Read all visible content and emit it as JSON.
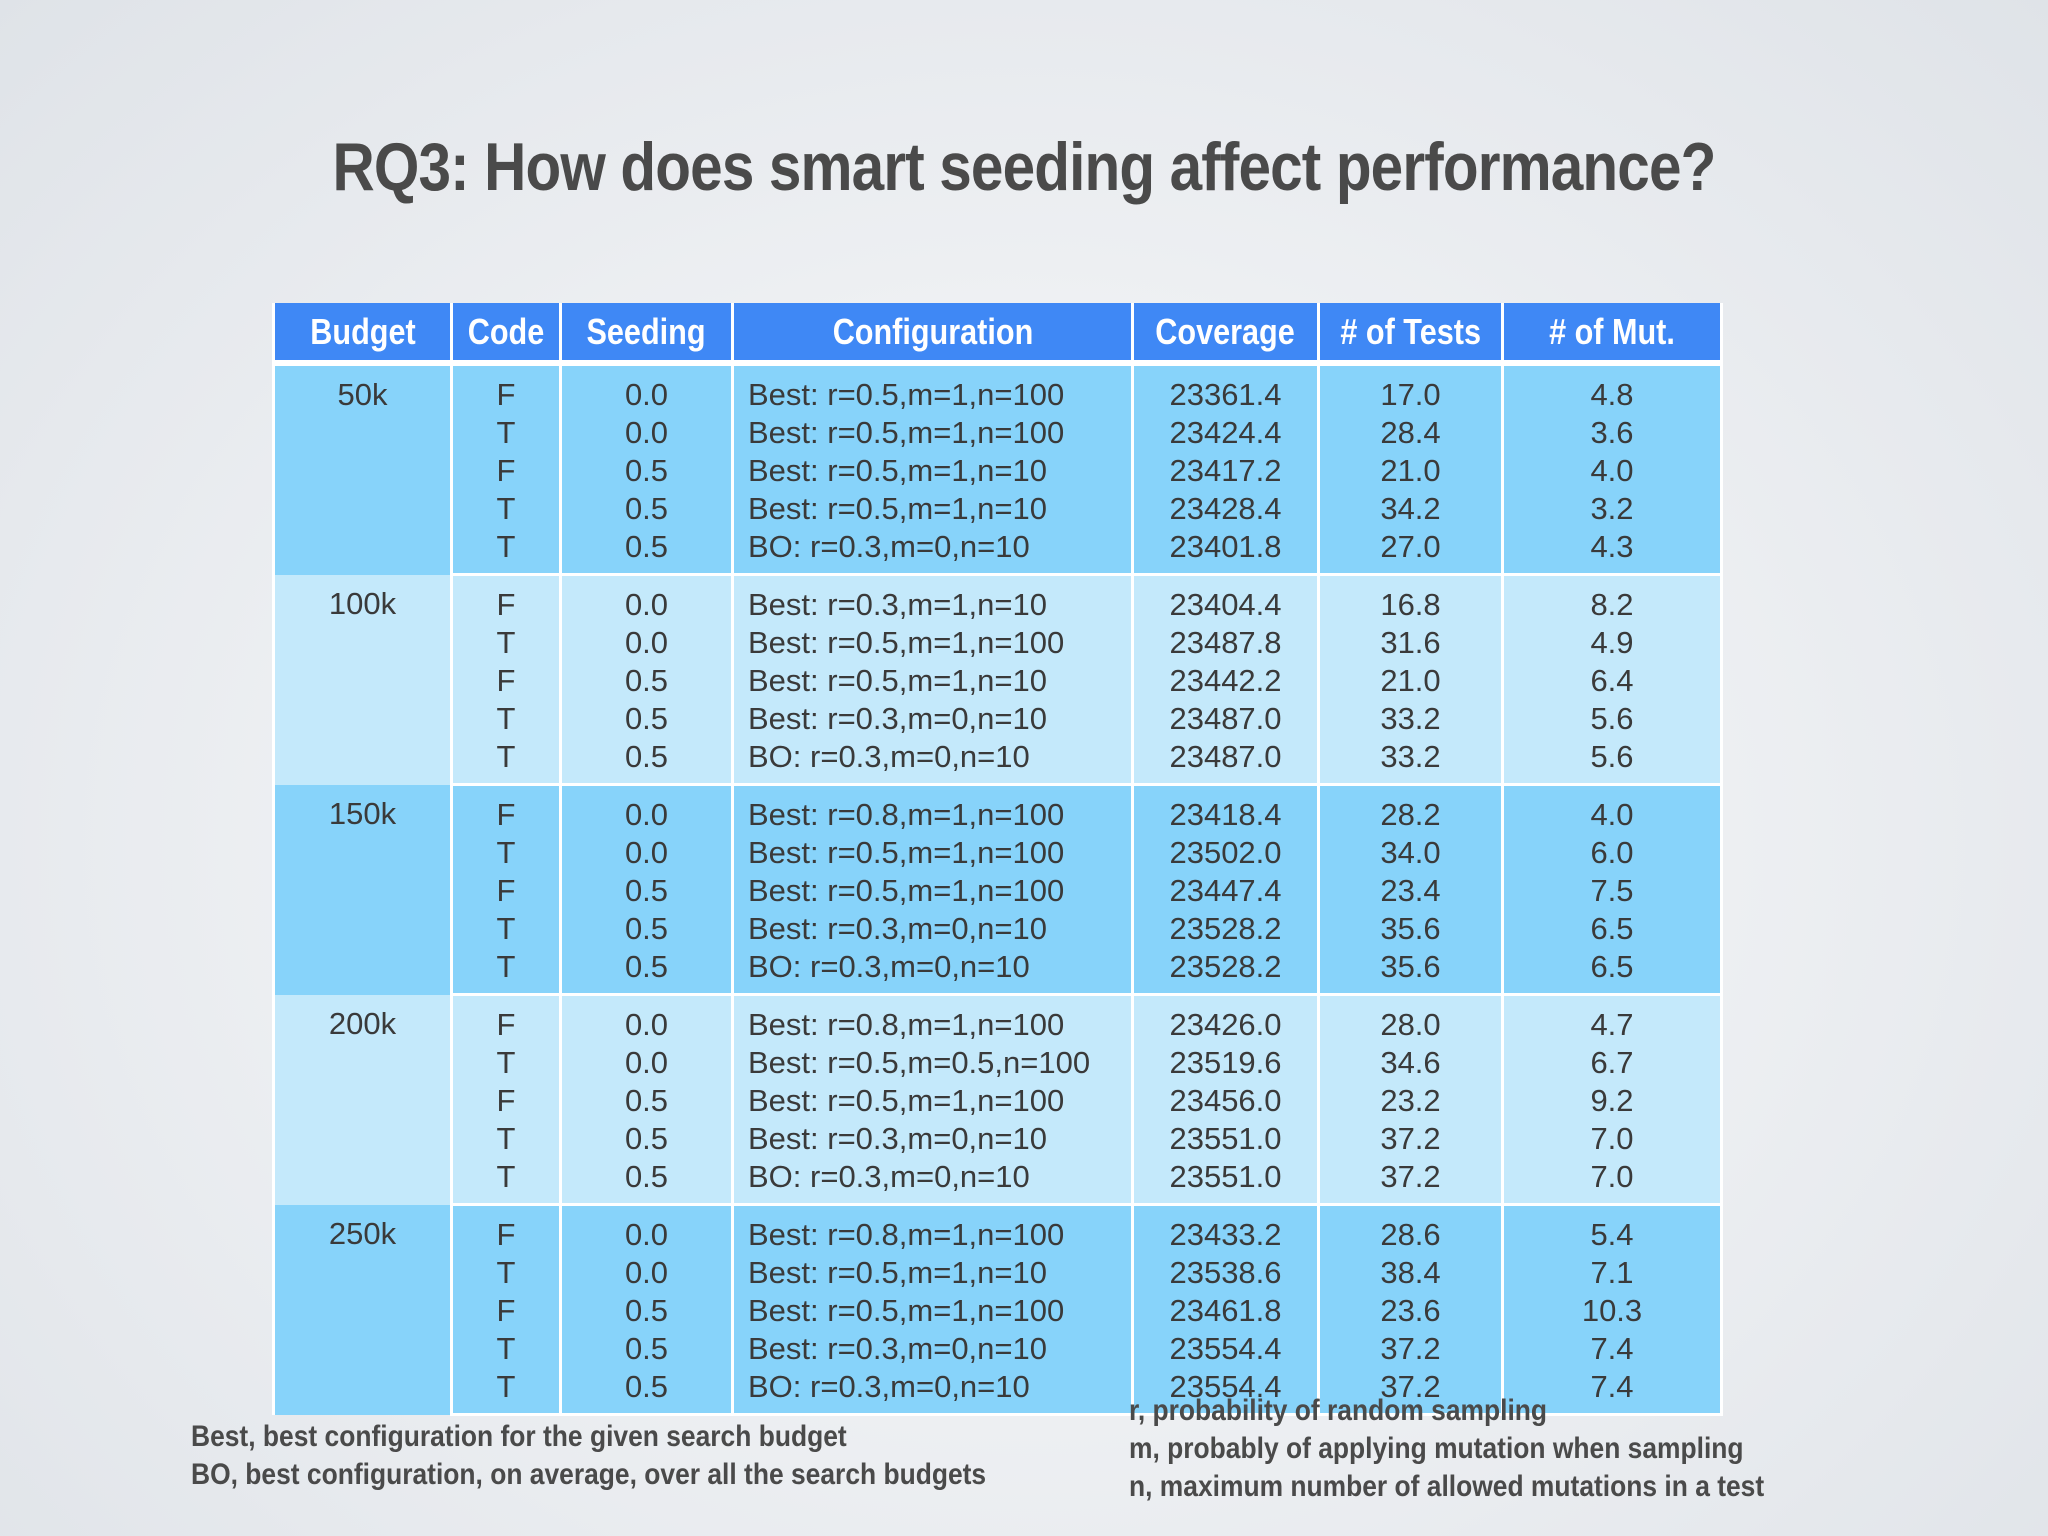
{
  "title": "RQ3: How does smart seeding affect performance?",
  "table": {
    "headers": [
      "Budget",
      "Code",
      "Seeding",
      "Configuration",
      "Coverage",
      "# of Tests",
      "# of Mut."
    ],
    "groups": [
      {
        "budget": "50k",
        "rows": [
          {
            "code": "F",
            "seeding": "0.0",
            "configuration": "Best: r=0.5,m=1,n=100",
            "coverage": "23361.4",
            "tests": "17.0",
            "mut": "4.8"
          },
          {
            "code": "T",
            "seeding": "0.0",
            "configuration": "Best: r=0.5,m=1,n=100",
            "coverage": "23424.4",
            "tests": "28.4",
            "mut": "3.6"
          },
          {
            "code": "F",
            "seeding": "0.5",
            "configuration": "Best: r=0.5,m=1,n=10",
            "coverage": "23417.2",
            "tests": "21.0",
            "mut": "4.0"
          },
          {
            "code": "T",
            "seeding": "0.5",
            "configuration": "Best: r=0.5,m=1,n=10",
            "coverage": "23428.4",
            "tests": "34.2",
            "mut": "3.2"
          },
          {
            "code": "T",
            "seeding": "0.5",
            "configuration": "BO: r=0.3,m=0,n=10",
            "coverage": "23401.8",
            "tests": "27.0",
            "mut": "4.3"
          }
        ]
      },
      {
        "budget": "100k",
        "rows": [
          {
            "code": "F",
            "seeding": "0.0",
            "configuration": "Best: r=0.3,m=1,n=10",
            "coverage": "23404.4",
            "tests": "16.8",
            "mut": "8.2"
          },
          {
            "code": "T",
            "seeding": "0.0",
            "configuration": "Best: r=0.5,m=1,n=100",
            "coverage": "23487.8",
            "tests": "31.6",
            "mut": "4.9"
          },
          {
            "code": "F",
            "seeding": "0.5",
            "configuration": "Best: r=0.5,m=1,n=10",
            "coverage": "23442.2",
            "tests": "21.0",
            "mut": "6.4"
          },
          {
            "code": "T",
            "seeding": "0.5",
            "configuration": "Best: r=0.3,m=0,n=10",
            "coverage": "23487.0",
            "tests": "33.2",
            "mut": "5.6"
          },
          {
            "code": "T",
            "seeding": "0.5",
            "configuration": "BO: r=0.3,m=0,n=10",
            "coverage": "23487.0",
            "tests": "33.2",
            "mut": "5.6"
          }
        ]
      },
      {
        "budget": "150k",
        "rows": [
          {
            "code": "F",
            "seeding": "0.0",
            "configuration": "Best: r=0.8,m=1,n=100",
            "coverage": "23418.4",
            "tests": "28.2",
            "mut": "4.0"
          },
          {
            "code": "T",
            "seeding": "0.0",
            "configuration": "Best: r=0.5,m=1,n=100",
            "coverage": "23502.0",
            "tests": "34.0",
            "mut": "6.0"
          },
          {
            "code": "F",
            "seeding": "0.5",
            "configuration": "Best: r=0.5,m=1,n=100",
            "coverage": "23447.4",
            "tests": "23.4",
            "mut": "7.5"
          },
          {
            "code": "T",
            "seeding": "0.5",
            "configuration": "Best: r=0.3,m=0,n=10",
            "coverage": "23528.2",
            "tests": "35.6",
            "mut": "6.5"
          },
          {
            "code": "T",
            "seeding": "0.5",
            "configuration": "BO: r=0.3,m=0,n=10",
            "coverage": "23528.2",
            "tests": "35.6",
            "mut": "6.5"
          }
        ]
      },
      {
        "budget": "200k",
        "rows": [
          {
            "code": "F",
            "seeding": "0.0",
            "configuration": "Best: r=0.8,m=1,n=100",
            "coverage": "23426.0",
            "tests": "28.0",
            "mut": "4.7"
          },
          {
            "code": "T",
            "seeding": "0.0",
            "configuration": "Best: r=0.5,m=0.5,n=100",
            "coverage": "23519.6",
            "tests": "34.6",
            "mut": "6.7"
          },
          {
            "code": "F",
            "seeding": "0.5",
            "configuration": "Best: r=0.5,m=1,n=100",
            "coverage": "23456.0",
            "tests": "23.2",
            "mut": "9.2"
          },
          {
            "code": "T",
            "seeding": "0.5",
            "configuration": "Best: r=0.3,m=0,n=10",
            "coverage": "23551.0",
            "tests": "37.2",
            "mut": "7.0"
          },
          {
            "code": "T",
            "seeding": "0.5",
            "configuration": "BO: r=0.3,m=0,n=10",
            "coverage": "23551.0",
            "tests": "37.2",
            "mut": "7.0"
          }
        ]
      },
      {
        "budget": "250k",
        "rows": [
          {
            "code": "F",
            "seeding": "0.0",
            "configuration": "Best: r=0.8,m=1,n=100",
            "coverage": "23433.2",
            "tests": "28.6",
            "mut": "5.4"
          },
          {
            "code": "T",
            "seeding": "0.0",
            "configuration": "Best: r=0.5,m=1,n=10",
            "coverage": "23538.6",
            "tests": "38.4",
            "mut": "7.1"
          },
          {
            "code": "F",
            "seeding": "0.5",
            "configuration": "Best: r=0.5,m=1,n=100",
            "coverage": "23461.8",
            "tests": "23.6",
            "mut": "10.3"
          },
          {
            "code": "T",
            "seeding": "0.5",
            "configuration": "Best: r=0.3,m=0,n=10",
            "coverage": "23554.4",
            "tests": "37.2",
            "mut": "7.4"
          },
          {
            "code": "T",
            "seeding": "0.5",
            "configuration": "BO: r=0.3,m=0,n=10",
            "coverage": "23554.4",
            "tests": "37.2",
            "mut": "7.4"
          }
        ]
      }
    ]
  },
  "notes_left": [
    "Best, best configuration for the given search budget",
    "BO, best configuration, on average, over all the search budgets"
  ],
  "notes_right": [
    "r, probability of random sampling",
    "m, probably of applying mutation when sampling",
    "n, maximum number of allowed mutations in a test"
  ],
  "colors": {
    "header_bg": "#3f88f5",
    "band_dark": "#87d3fa",
    "band_light": "#c4e9fb",
    "title_text": "#4a4a4a"
  }
}
